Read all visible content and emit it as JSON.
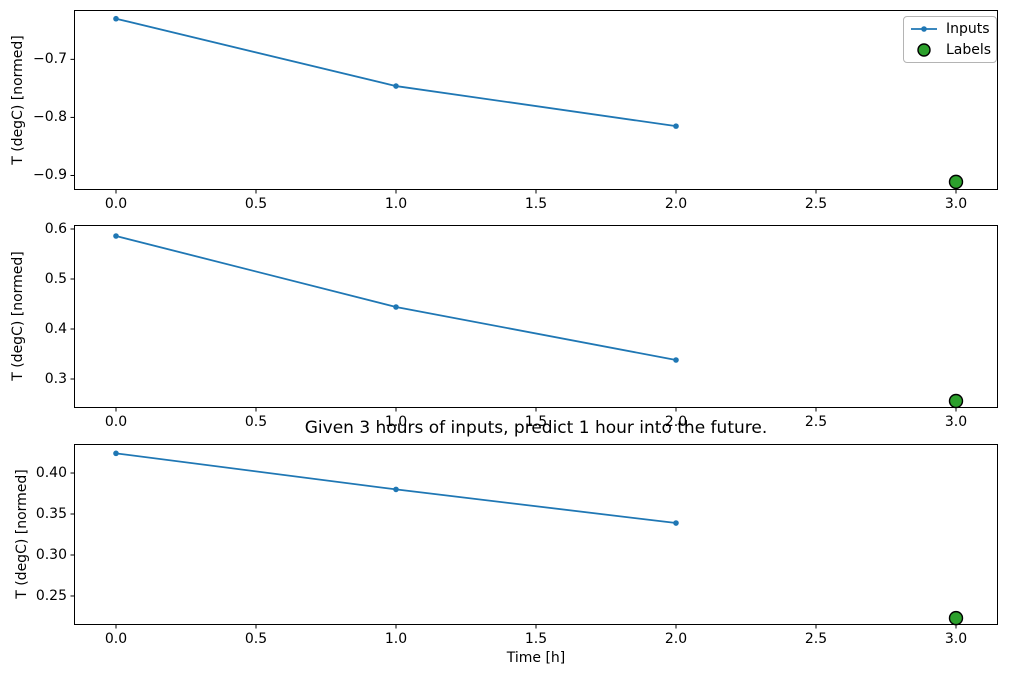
{
  "figure": {
    "background": "#ffffff"
  },
  "chart_data": {
    "type": "line",
    "title": "Given 3 hours of inputs, predict 1 hour into the future.",
    "xlabel": "Time [h]",
    "grid": false,
    "colors": {
      "inputs": "#1f77b4",
      "labels": "#2ca02c",
      "label_edge": "#000000",
      "axes": "#000000"
    },
    "legend": {
      "position": "upper-right",
      "entries": [
        {
          "label": "Inputs",
          "marker": "line-with-dot",
          "color": "#1f77b4"
        },
        {
          "label": "Labels",
          "marker": "circle",
          "color": "#2ca02c",
          "edge_color": "#000000"
        }
      ]
    },
    "subplots": [
      {
        "ylabel": "T (degC) [normed]",
        "xlim": [
          -0.15,
          3.15
        ],
        "ylim": [
          -0.925,
          -0.615
        ],
        "xticks": {
          "values": [
            0,
            0.5,
            1,
            1.5,
            2,
            2.5,
            3
          ],
          "labels": [
            "0.0",
            "0.5",
            "1.0",
            "1.5",
            "2.0",
            "2.5",
            "3.0"
          ]
        },
        "yticks": {
          "values": [
            -0.7,
            -0.8,
            -0.9
          ],
          "labels": [
            "−0.7",
            "−0.8",
            "−0.9"
          ]
        },
        "series": [
          {
            "name": "Inputs",
            "x": [
              0,
              1,
              2
            ],
            "y": [
              -0.63,
              -0.746,
              -0.815
            ]
          },
          {
            "name": "Labels",
            "x": [
              3.0
            ],
            "y": [
              -0.911
            ]
          }
        ]
      },
      {
        "ylabel": "T (degC) [normed]",
        "xlim": [
          -0.15,
          3.15
        ],
        "ylim": [
          0.242,
          0.608
        ],
        "xticks": {
          "values": [
            0,
            0.5,
            1,
            1.5,
            2,
            2.5,
            3
          ],
          "labels": [
            "0.0",
            "0.5",
            "1.0",
            "1.5",
            "2.0",
            "2.5",
            "3.0"
          ]
        },
        "yticks": {
          "values": [
            0.3,
            0.4,
            0.5,
            0.6
          ],
          "labels": [
            "0.3",
            "0.4",
            "0.5",
            "0.6"
          ]
        },
        "series": [
          {
            "name": "Inputs",
            "x": [
              0,
              1,
              2
            ],
            "y": [
              0.586,
              0.444,
              0.338
            ]
          },
          {
            "name": "Labels",
            "x": [
              3.0
            ],
            "y": [
              0.256
            ]
          }
        ]
      },
      {
        "ylabel": "T (degC) [normed]",
        "xlim": [
          -0.15,
          3.15
        ],
        "ylim": [
          0.2146,
          0.4354
        ],
        "xticks": {
          "values": [
            0,
            0.5,
            1,
            1.5,
            2,
            2.5,
            3
          ],
          "labels": [
            "0.0",
            "0.5",
            "1.0",
            "1.5",
            "2.0",
            "2.5",
            "3.0"
          ]
        },
        "yticks": {
          "values": [
            0.25,
            0.3,
            0.35,
            0.4
          ],
          "labels": [
            "0.25",
            "0.30",
            "0.35",
            "0.40"
          ]
        },
        "series": [
          {
            "name": "Inputs",
            "x": [
              0,
              1,
              2
            ],
            "y": [
              0.424,
              0.38,
              0.339
            ]
          },
          {
            "name": "Labels",
            "x": [
              3.0
            ],
            "y": [
              0.223
            ]
          }
        ]
      }
    ]
  }
}
